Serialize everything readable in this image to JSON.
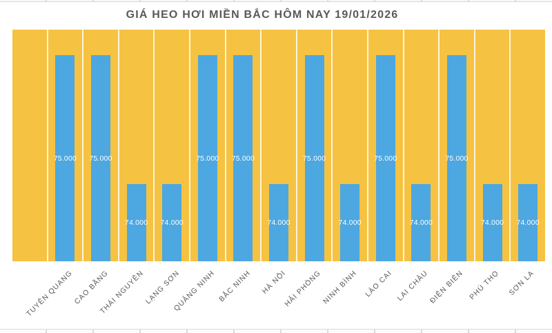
{
  "page": {
    "background": "#FFFFFF",
    "spreadsheet_strips": {
      "visible": true,
      "line_color": "#D9D9D9",
      "description": "thin excel row edges visible above title and below category labels"
    }
  },
  "chart_data": {
    "type": "bar",
    "title": "GIÁ HEO HƠI MIỀN BẮC HÔM NAY 19/01/2026",
    "categories": [
      "TUYÊN QUANG",
      "CAO BẰNG",
      "THÁI NGUYÊN",
      "LẠNG SƠN",
      "QUẢNG NINH",
      "BẮC NINH",
      "HÀ NỘI",
      "HẢI PHÒNG",
      "NINH BÌNH",
      "LÀO CAI",
      "LAI CHÂU",
      "ĐIỆN BIÊN",
      "PHÚ THỌ",
      "SƠN LA"
    ],
    "values": [
      75000,
      75000,
      74000,
      74000,
      75000,
      75000,
      74000,
      75000,
      74000,
      75000,
      74000,
      75000,
      74000,
      74000
    ],
    "value_labels": [
      "75.000",
      "75.000",
      "74.000",
      "74.000",
      "75.000",
      "75.000",
      "74.000",
      "75.000",
      "74.000",
      "75.000",
      "74.000",
      "75.000",
      "74.000",
      "74.000"
    ],
    "xlabel": "",
    "ylabel": "",
    "ylim": [
      73400,
      75200
    ],
    "legend": "none",
    "y_axis_ticks": "hidden",
    "grid": "white vertical separators between category columns on solid yellow plot fill",
    "leading_empty_column": true,
    "bar_label_position": "centered inside bar",
    "category_label_rotation_deg": -45,
    "colors": {
      "plot_background": "#F5C242",
      "bar": "#4DA7E0",
      "bar_label_text": "#FFFFFF",
      "axis_text": "#595959",
      "title_text": "#595959",
      "column_separator": "rgba(255,255,255,0.82)"
    }
  }
}
